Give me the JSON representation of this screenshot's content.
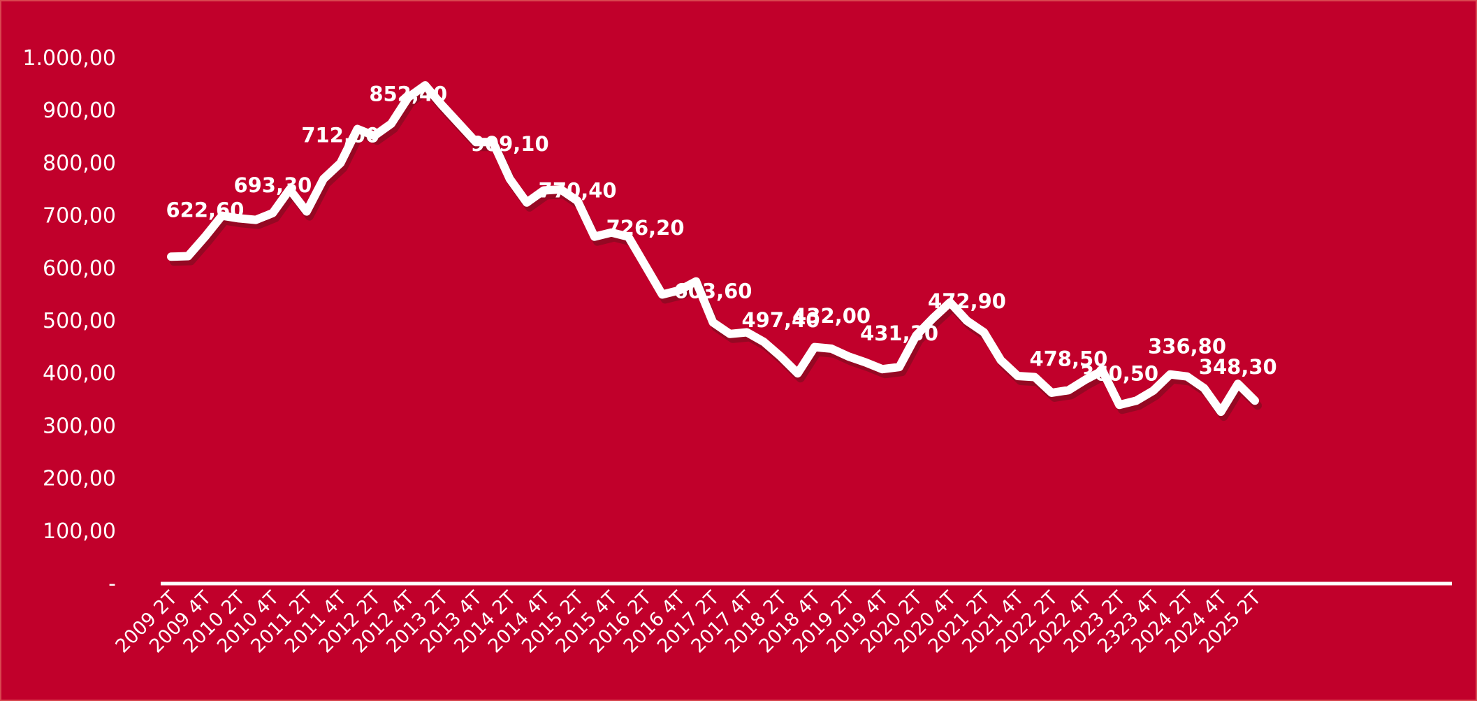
{
  "colors": {
    "background": "#c1002b",
    "line": "#ffffff",
    "shadow": "#8a0a22",
    "text": "#ffffff"
  },
  "chart_data": {
    "type": "line",
    "title": "",
    "xlabel": "",
    "ylabel": "",
    "ylim": [
      0,
      1000
    ],
    "y_ticks": [
      {
        "value": 0,
        "label": "-"
      },
      {
        "value": 100,
        "label": "100,00"
      },
      {
        "value": 200,
        "label": "200,00"
      },
      {
        "value": 300,
        "label": "300,00"
      },
      {
        "value": 400,
        "label": "400,00"
      },
      {
        "value": 500,
        "label": "500,00"
      },
      {
        "value": 600,
        "label": "600,00"
      },
      {
        "value": 700,
        "label": "700,00"
      },
      {
        "value": 800,
        "label": "800,00"
      },
      {
        "value": 900,
        "label": "900,00"
      },
      {
        "value": 1000,
        "label": "1.000,00"
      }
    ],
    "x_tick_labels": [
      {
        "index": 0,
        "label": "2009 2T"
      },
      {
        "index": 2,
        "label": "2009 4T"
      },
      {
        "index": 4,
        "label": "2010 2T"
      },
      {
        "index": 6,
        "label": "2010 4T"
      },
      {
        "index": 8,
        "label": "2011 2T"
      },
      {
        "index": 10,
        "label": "2011 4T"
      },
      {
        "index": 12,
        "label": "2012 2T"
      },
      {
        "index": 14,
        "label": "2012 4T"
      },
      {
        "index": 16,
        "label": "2013 2T"
      },
      {
        "index": 18,
        "label": "2013 4T"
      },
      {
        "index": 20,
        "label": "2014 2T"
      },
      {
        "index": 22,
        "label": "2014 4T"
      },
      {
        "index": 24,
        "label": "2015 2T"
      },
      {
        "index": 26,
        "label": "2015 4T"
      },
      {
        "index": 28,
        "label": "2016 2T"
      },
      {
        "index": 30,
        "label": "2016 4T"
      },
      {
        "index": 32,
        "label": "2017 2T"
      },
      {
        "index": 34,
        "label": "2017 4T"
      },
      {
        "index": 36,
        "label": "2018 2T"
      },
      {
        "index": 38,
        "label": "2018 4T"
      },
      {
        "index": 40,
        "label": "2019 2T"
      },
      {
        "index": 42,
        "label": "2019 4T"
      },
      {
        "index": 44,
        "label": "2020 2T"
      },
      {
        "index": 46,
        "label": "2020 4T"
      },
      {
        "index": 48,
        "label": "2021 2T"
      },
      {
        "index": 50,
        "label": "2021 4T"
      },
      {
        "index": 52,
        "label": "2022 2T"
      },
      {
        "index": 54,
        "label": "2022 4T"
      },
      {
        "index": 56,
        "label": "2023 2T"
      },
      {
        "index": 58,
        "label": "2323 4T"
      },
      {
        "index": 60,
        "label": "2024 2T"
      },
      {
        "index": 62,
        "label": "2024 4T"
      },
      {
        "index": 64,
        "label": "2025 2T"
      }
    ],
    "values": [
      622,
      623,
      660,
      700,
      695,
      692,
      705,
      750,
      708,
      770,
      800,
      865,
      852,
      875,
      925,
      948,
      910,
      875,
      840,
      840,
      770,
      725,
      748,
      750,
      728,
      660,
      668,
      660,
      605,
      550,
      558,
      575,
      497,
      475,
      478,
      460,
      432,
      400,
      450,
      447,
      432,
      421,
      408,
      412,
      472,
      505,
      535,
      500,
      478,
      425,
      395,
      393,
      363,
      368,
      388,
      405,
      340,
      348,
      367,
      398,
      394,
      372,
      327,
      380,
      348
    ],
    "data_labels": [
      {
        "label": "622,60",
        "index": 2,
        "dy": -28
      },
      {
        "label": "693,30",
        "index": 6,
        "dy": -30
      },
      {
        "label": "712,00",
        "index": 10,
        "dy": -30
      },
      {
        "label": "852,40",
        "index": 14,
        "dy": 5
      },
      {
        "label": "909,10",
        "index": 20,
        "dy": -40
      },
      {
        "label": "770,40",
        "index": 24,
        "dy": -5
      },
      {
        "label": "726,20",
        "index": 28,
        "dy": -44
      },
      {
        "label": "603,60",
        "index": 32,
        "dy": -35
      },
      {
        "label": "497,40",
        "index": 36,
        "dy": -42
      },
      {
        "label": "432,00",
        "index": 39,
        "dy": -37
      },
      {
        "label": "431,30",
        "index": 43,
        "dy": -38
      },
      {
        "label": "472,90",
        "index": 47,
        "dy": -18
      },
      {
        "label": "478,50",
        "index": 53,
        "dy": -35
      },
      {
        "label": "360,50",
        "index": 56,
        "dy": -35
      },
      {
        "label": "336,80",
        "index": 60,
        "dy": -33
      },
      {
        "label": "348,30",
        "index": 63,
        "dy": -14
      }
    ],
    "grid": false,
    "legend": "none"
  }
}
